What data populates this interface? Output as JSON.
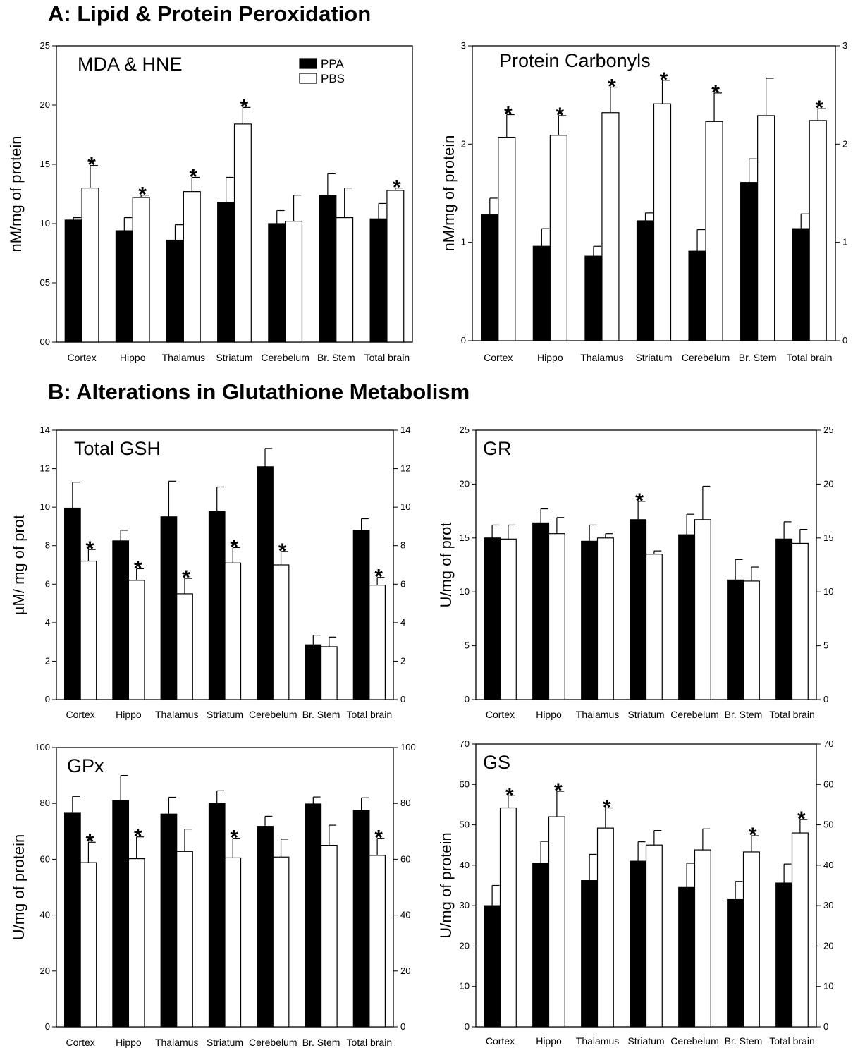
{
  "sections": {
    "a_title": "A: Lipid & Protein Peroxidation",
    "b_title": "B: Alterations in Glutathione Metabolism"
  },
  "colors": {
    "PPA": "#000000",
    "PBS": "#ffffff",
    "axis": "#000000"
  },
  "chart_data": [
    {
      "id": "mda-hne",
      "type": "bar",
      "title": "MDA & HNE",
      "ylabel": "nM/mg of protein",
      "xlabel": "",
      "ylim": [
        0,
        25
      ],
      "yticks": [
        0,
        5,
        10,
        15,
        20,
        25
      ],
      "ytick_labels": [
        "00",
        "05",
        "10",
        "15",
        "20",
        "25"
      ],
      "right_axis": false,
      "legend": {
        "position": "top-center",
        "entries": [
          "PPA",
          "PBS"
        ]
      },
      "categories": [
        "Cortex",
        "Hippo",
        "Thalamus",
        "Striatum",
        "Cerebelum",
        "Br. Stem",
        "Total brain"
      ],
      "series": [
        {
          "name": "PPA",
          "values": [
            10.3,
            9.4,
            8.6,
            11.8,
            10.0,
            12.4,
            10.4
          ],
          "errors": [
            0.2,
            1.1,
            1.3,
            2.1,
            1.1,
            1.8,
            1.3
          ]
        },
        {
          "name": "PBS",
          "values": [
            13.0,
            12.2,
            12.7,
            18.4,
            10.2,
            10.5,
            12.8
          ],
          "errors": [
            1.9,
            0.2,
            1.2,
            1.4,
            2.2,
            2.5,
            0.2
          ]
        }
      ],
      "significance": [
        [
          false,
          true
        ],
        [
          false,
          true
        ],
        [
          false,
          true
        ],
        [
          false,
          true
        ],
        [
          false,
          false
        ],
        [
          false,
          false
        ],
        [
          false,
          true
        ]
      ]
    },
    {
      "id": "protein-carbonyls",
      "type": "bar",
      "title": "Protein Carbonyls",
      "ylabel": "nM/mg of protein",
      "xlabel": "",
      "ylim": [
        0,
        3.0
      ],
      "yticks": [
        0,
        1,
        2,
        3
      ],
      "ytick_labels": [
        "0",
        "1",
        "2",
        "3"
      ],
      "right_axis": true,
      "categories": [
        "Cortex",
        "Hippo",
        "Thalamus",
        "Striatum",
        "Cerebelum",
        "Br. Stem",
        "Total brain"
      ],
      "series": [
        {
          "name": "PPA",
          "values": [
            1.28,
            0.96,
            0.86,
            1.22,
            0.91,
            1.61,
            1.14
          ],
          "errors": [
            0.17,
            0.18,
            0.1,
            0.08,
            0.22,
            0.24,
            0.15
          ]
        },
        {
          "name": "PBS",
          "values": [
            2.07,
            2.09,
            2.32,
            2.41,
            2.23,
            2.29,
            2.24
          ],
          "errors": [
            0.23,
            0.2,
            0.26,
            0.24,
            0.29,
            0.38,
            0.12
          ]
        }
      ],
      "significance": [
        [
          false,
          true
        ],
        [
          false,
          true
        ],
        [
          false,
          true
        ],
        [
          false,
          true
        ],
        [
          false,
          true
        ],
        [
          false,
          false
        ],
        [
          false,
          true
        ]
      ]
    },
    {
      "id": "total-gsh",
      "type": "bar",
      "title": "Total GSH",
      "ylabel": "µM/ mg of prot",
      "xlabel": "",
      "ylim": [
        0,
        14
      ],
      "yticks": [
        0,
        2,
        4,
        6,
        8,
        10,
        12,
        14
      ],
      "ytick_labels": [
        "0",
        "2",
        "4",
        "6",
        "8",
        "10",
        "12",
        "14"
      ],
      "right_axis": true,
      "categories": [
        "Cortex",
        "Hippo",
        "Thalamus",
        "Striatum",
        "Cerebelum",
        "Br. Stem",
        "Total brain"
      ],
      "series": [
        {
          "name": "PPA",
          "values": [
            9.95,
            8.25,
            9.5,
            9.8,
            12.1,
            2.85,
            8.8
          ],
          "errors": [
            1.35,
            0.55,
            1.85,
            1.25,
            0.95,
            0.5,
            0.6
          ]
        },
        {
          "name": "PBS",
          "values": [
            7.2,
            6.2,
            5.5,
            7.1,
            7.0,
            2.75,
            5.95
          ],
          "errors": [
            0.6,
            0.6,
            0.8,
            0.8,
            0.7,
            0.5,
            0.4
          ]
        }
      ],
      "significance": [
        [
          false,
          true
        ],
        [
          false,
          true
        ],
        [
          false,
          true
        ],
        [
          false,
          true
        ],
        [
          false,
          true
        ],
        [
          false,
          false
        ],
        [
          false,
          true
        ]
      ]
    },
    {
      "id": "gr",
      "type": "bar",
      "title": "GR",
      "ylabel": "U/mg of prot",
      "xlabel": "",
      "ylim": [
        0,
        25
      ],
      "yticks": [
        0,
        5,
        10,
        15,
        20,
        25
      ],
      "ytick_labels": [
        "0",
        "5",
        "10",
        "15",
        "20",
        "25"
      ],
      "right_axis": true,
      "categories": [
        "Cortex",
        "Hippo",
        "Thalamus",
        "Striatum",
        "Cerebelum",
        "Br. Stem",
        "Total brain"
      ],
      "series": [
        {
          "name": "PPA",
          "values": [
            15.0,
            16.4,
            14.7,
            16.7,
            15.3,
            11.1,
            14.9
          ],
          "errors": [
            1.2,
            1.3,
            1.5,
            1.7,
            1.9,
            1.9,
            1.6
          ]
        },
        {
          "name": "PBS",
          "values": [
            14.9,
            15.4,
            15.0,
            13.5,
            16.7,
            11.0,
            14.5
          ],
          "errors": [
            1.3,
            1.5,
            0.4,
            0.3,
            3.1,
            1.3,
            1.3
          ]
        }
      ],
      "significance": [
        [
          false,
          false
        ],
        [
          false,
          false
        ],
        [
          false,
          false
        ],
        [
          true,
          false
        ],
        [
          false,
          false
        ],
        [
          false,
          false
        ],
        [
          false,
          false
        ]
      ]
    },
    {
      "id": "gpx",
      "type": "bar",
      "title": "GPx",
      "ylabel": "U/mg of protein",
      "xlabel": "",
      "ylim": [
        0,
        100
      ],
      "yticks": [
        0,
        20,
        40,
        60,
        80,
        100
      ],
      "ytick_labels": [
        "0",
        "20",
        "40",
        "60",
        "80",
        "100"
      ],
      "right_axis": true,
      "categories": [
        "Cortex",
        "Hippo",
        "Thalamus",
        "Striatum",
        "Cerebelum",
        "Br. Stem",
        "Total brain"
      ],
      "series": [
        {
          "name": "PPA",
          "values": [
            76.5,
            81.0,
            76.2,
            80.0,
            71.8,
            79.8,
            77.5
          ],
          "errors": [
            6.0,
            9.0,
            6.0,
            4.5,
            3.6,
            2.5,
            4.5
          ]
        },
        {
          "name": "PBS",
          "values": [
            58.8,
            60.2,
            62.8,
            60.5,
            60.8,
            65.0,
            61.4
          ],
          "errors": [
            7.3,
            7.8,
            8.0,
            7.0,
            6.4,
            7.2,
            6.1
          ]
        }
      ],
      "significance": [
        [
          false,
          true
        ],
        [
          false,
          true
        ],
        [
          false,
          false
        ],
        [
          false,
          true
        ],
        [
          false,
          false
        ],
        [
          false,
          false
        ],
        [
          false,
          true
        ]
      ]
    },
    {
      "id": "gs",
      "type": "bar",
      "title": "GS",
      "ylabel": "U/mg of protein",
      "xlabel": "",
      "ylim": [
        0,
        70
      ],
      "yticks": [
        0,
        10,
        20,
        30,
        40,
        50,
        60,
        70
      ],
      "ytick_labels": [
        "0",
        "10",
        "20",
        "30",
        "40",
        "50",
        "60",
        "70"
      ],
      "right_axis": true,
      "categories": [
        "Cortex",
        "Hippo",
        "Thalamus",
        "Striatum",
        "Cerebelum",
        "Br. Stem",
        "Total brain"
      ],
      "series": [
        {
          "name": "PPA",
          "values": [
            30.0,
            40.5,
            36.2,
            41.0,
            34.5,
            31.5,
            35.6
          ],
          "errors": [
            5.0,
            5.4,
            6.5,
            4.8,
            6.0,
            4.5,
            4.7
          ]
        },
        {
          "name": "PBS",
          "values": [
            54.2,
            52.0,
            49.2,
            45.0,
            43.8,
            43.3,
            48.0
          ],
          "errors": [
            3.0,
            6.3,
            5.0,
            3.6,
            5.2,
            4.0,
            3.3
          ]
        }
      ],
      "significance": [
        [
          false,
          true
        ],
        [
          false,
          true
        ],
        [
          false,
          true
        ],
        [
          false,
          false
        ],
        [
          false,
          false
        ],
        [
          false,
          true
        ],
        [
          false,
          true
        ]
      ]
    }
  ]
}
